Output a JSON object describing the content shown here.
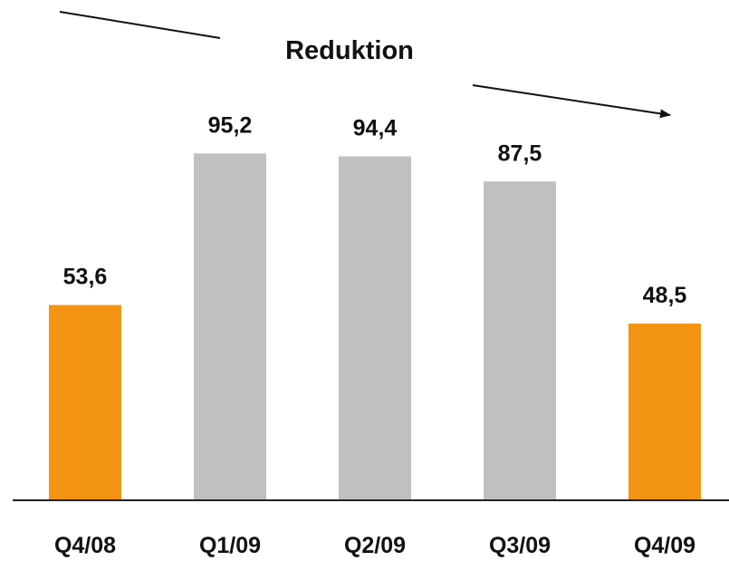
{
  "chart_data": {
    "type": "bar",
    "title": "Reduktion",
    "categories": [
      "Q4/08",
      "Q1/09",
      "Q2/09",
      "Q3/09",
      "Q4/09"
    ],
    "values": [
      53.6,
      95.2,
      94.4,
      87.5,
      48.5
    ],
    "value_labels": [
      "53,6",
      "95,2",
      "94,4",
      "87,5",
      "48,5"
    ],
    "bar_colors": [
      "#f39512",
      "#c0c0c0",
      "#c0c0c0",
      "#c0c0c0",
      "#f39512"
    ],
    "ylim": [
      0,
      100
    ],
    "grid": false,
    "legend": "none",
    "xlabel": "",
    "ylabel": ""
  }
}
